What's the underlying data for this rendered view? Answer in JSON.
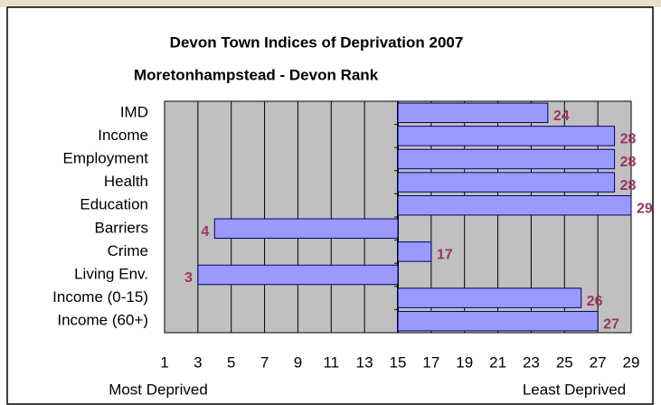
{
  "chart_data": {
    "type": "hbar",
    "title": "Devon Town Indices of Deprivation 2007",
    "subtitle": "Moretonhampstead - Devon Rank",
    "categories": [
      "IMD",
      "Income",
      "Employment",
      "Health",
      "Education",
      "Barriers",
      "Crime",
      "Living Env.",
      "Income (0-15)",
      "Income (60+)"
    ],
    "values": [
      24,
      28,
      28,
      28,
      29,
      4,
      17,
      3,
      26,
      27
    ],
    "bar_base": 15,
    "color": "#9999ff",
    "label_color": "#993366",
    "xlim": [
      1,
      29
    ],
    "xticks": [
      1,
      3,
      5,
      7,
      9,
      11,
      13,
      15,
      17,
      19,
      21,
      23,
      25,
      27,
      29
    ],
    "x_label_left": "Most Deprived",
    "x_label_right": "Least Deprived",
    "grid": true
  }
}
